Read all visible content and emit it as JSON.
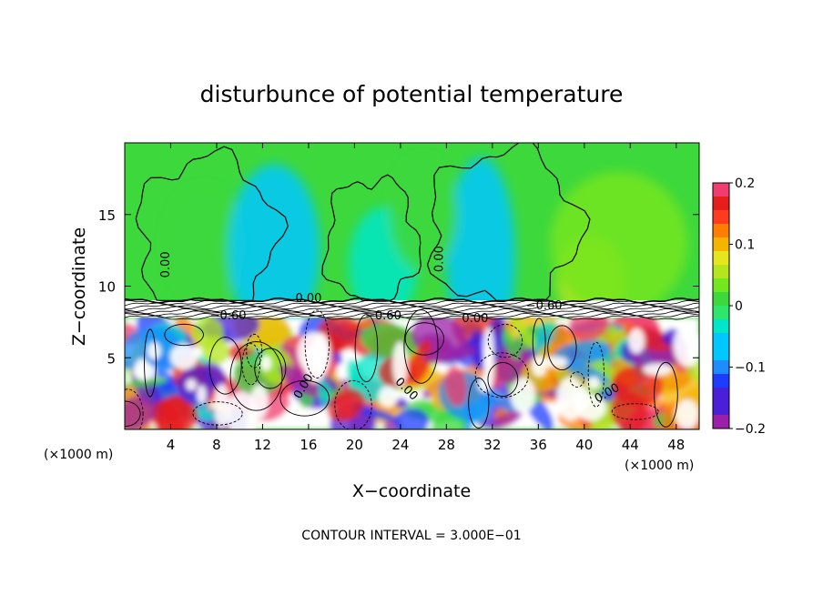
{
  "chart_data": {
    "type": "heatmap",
    "title": "disturbunce of potential temperature",
    "xlabel": "X−coordinate",
    "ylabel": "Z−coordinate",
    "x_unit_left": "(×1000 m)",
    "x_unit_right": "(×1000 m)",
    "xlim": [
      0,
      50
    ],
    "ylim": [
      0,
      20
    ],
    "x_ticks": [
      "4",
      "8",
      "12",
      "16",
      "20",
      "24",
      "28",
      "32",
      "36",
      "40",
      "44",
      "48"
    ],
    "x_tick_values": [
      4,
      8,
      12,
      16,
      20,
      24,
      28,
      32,
      36,
      40,
      44,
      48
    ],
    "y_ticks": [
      "5",
      "10",
      "15"
    ],
    "y_tick_values": [
      5,
      10,
      15
    ],
    "colorbar": {
      "range": [
        -0.2,
        0.2
      ],
      "tick_labels": [
        "0.2",
        "0.1",
        "0",
        "−0.1",
        "−0.2"
      ],
      "tick_values": [
        0.2,
        0.1,
        0,
        -0.1,
        -0.2
      ]
    },
    "contour_labels": [
      {
        "text": "0.00",
        "x": 3.6,
        "y": 11.5,
        "rot": -90
      },
      {
        "text": "0.00",
        "x": 16.0,
        "y": 9.1,
        "rot": 0
      },
      {
        "text": "−0.60",
        "x": 9.0,
        "y": 7.9,
        "rot": 0
      },
      {
        "text": "−0.60",
        "x": 22.5,
        "y": 7.9,
        "rot": 0
      },
      {
        "text": "0.00",
        "x": 27.4,
        "y": 11.9,
        "rot": -90
      },
      {
        "text": "−0.60",
        "x": 36.5,
        "y": 8.6,
        "rot": 0
      },
      {
        "text": "0.00",
        "x": 30.5,
        "y": 7.7,
        "rot": 0
      },
      {
        "text": "0.00",
        "x": 15.6,
        "y": 3.0,
        "rot": -60
      },
      {
        "text": "0.00",
        "x": 24.5,
        "y": 2.8,
        "rot": 45
      },
      {
        "text": "0.00",
        "x": 42.0,
        "y": 2.5,
        "rot": -30
      }
    ],
    "field": {
      "upper_background": 0.0,
      "inversion_layer_z": [
        7.8,
        9.0
      ],
      "plumes": [
        {
          "x": 7.0,
          "z": 13.0,
          "w": 3.5,
          "h": 4.0,
          "v": 0.015
        },
        {
          "x": 13.0,
          "z": 12.5,
          "w": 4.0,
          "h": 6.0,
          "v": -0.07
        },
        {
          "x": 22.5,
          "z": 11.5,
          "w": 3.0,
          "h": 4.0,
          "v": -0.03
        },
        {
          "x": 31.0,
          "z": 12.0,
          "w": 3.0,
          "h": 7.0,
          "v": -0.06
        },
        {
          "x": 40.5,
          "z": 10.5,
          "w": 3.0,
          "h": 3.0,
          "v": 0.06
        },
        {
          "x": 43.0,
          "z": 13.0,
          "w": 6.0,
          "h": 5.0,
          "v": 0.02
        },
        {
          "x": 26.0,
          "z": 15.0,
          "w": 3.0,
          "h": 4.0,
          "v": 0.01
        }
      ]
    },
    "legend": "right",
    "annotation": "CONTOUR INTERVAL = 3.000E−01"
  }
}
